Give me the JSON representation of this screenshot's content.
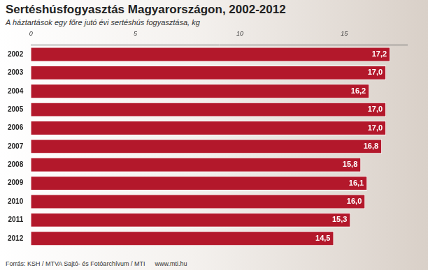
{
  "chart_data": {
    "type": "bar",
    "orientation": "horizontal",
    "title": "Sertéshúsfogyasztás Magyarországon, 2002-2012",
    "subtitle": "A háztartások egy főre jutó évi sertéshús fogyasztása, kg",
    "categories": [
      "2002",
      "2003",
      "2004",
      "2005",
      "2006",
      "2007",
      "2008",
      "2009",
      "2010",
      "2011",
      "2012"
    ],
    "values": [
      17.2,
      17.0,
      16.2,
      17.0,
      17.0,
      16.8,
      15.8,
      16.1,
      16.0,
      15.3,
      14.5
    ],
    "value_labels": [
      "17,2",
      "17,0",
      "16,2",
      "17,0",
      "17,0",
      "16,8",
      "15,8",
      "16,1",
      "16,0",
      "15,3",
      "14,5"
    ],
    "data_labels": true,
    "color": "#b3182b",
    "xlim": [
      0,
      18
    ],
    "xticks": [
      0,
      5,
      10,
      15
    ],
    "grid": false,
    "annotations": [
      "Forrás: KSH / MTVA Sajtó- és Fotóarchívum / MTI",
      "www.mti.hu"
    ]
  }
}
